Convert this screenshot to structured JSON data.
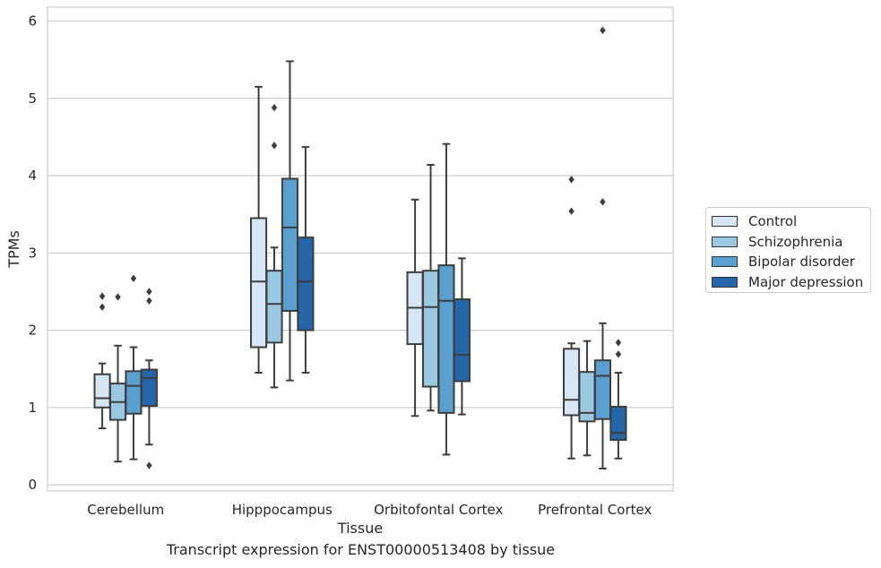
{
  "chart_data": {
    "type": "box",
    "caption": "Transcript expression for ENST00000513408 by tissue",
    "xlabel": "Tissue",
    "ylabel": "TPMs",
    "ylim": [
      -0.08,
      6.18
    ],
    "yticks": [
      0,
      1,
      2,
      3,
      4,
      5,
      6
    ],
    "grid": "horizontal",
    "legend_position": "right",
    "categories": [
      "Cerebellum",
      "Hipppocampus",
      "Orbitofontal Cortex",
      "Prefrontal Cortex"
    ],
    "series": [
      {
        "name": "Control",
        "color": "#d6e6f4",
        "boxes": [
          {
            "whisker_low": 0.73,
            "q1": 1.0,
            "median": 1.12,
            "q3": 1.43,
            "whisker_high": 1.57,
            "outliers": [
              2.3,
              2.44
            ]
          },
          {
            "whisker_low": 1.45,
            "q1": 1.78,
            "median": 2.63,
            "q3": 3.45,
            "whisker_high": 5.15,
            "outliers": []
          },
          {
            "whisker_low": 0.89,
            "q1": 1.82,
            "median": 2.29,
            "q3": 2.75,
            "whisker_high": 3.69,
            "outliers": []
          },
          {
            "whisker_low": 0.34,
            "q1": 0.9,
            "median": 1.1,
            "q3": 1.76,
            "whisker_high": 1.83,
            "outliers": [
              3.54,
              3.95
            ]
          }
        ]
      },
      {
        "name": "Schizophrenia",
        "color": "#9ac8e0",
        "boxes": [
          {
            "whisker_low": 0.3,
            "q1": 0.84,
            "median": 1.07,
            "q3": 1.31,
            "whisker_high": 1.8,
            "outliers": [
              2.43
            ]
          },
          {
            "whisker_low": 1.26,
            "q1": 1.84,
            "median": 2.34,
            "q3": 2.77,
            "whisker_high": 3.07,
            "outliers": [
              4.39,
              4.88
            ]
          },
          {
            "whisker_low": 0.96,
            "q1": 1.27,
            "median": 2.3,
            "q3": 2.77,
            "whisker_high": 4.14,
            "outliers": []
          },
          {
            "whisker_low": 0.38,
            "q1": 0.82,
            "median": 0.93,
            "q3": 1.46,
            "whisker_high": 1.86,
            "outliers": []
          }
        ]
      },
      {
        "name": "Bipolar disorder",
        "color": "#5a9fcd",
        "boxes": [
          {
            "whisker_low": 0.33,
            "q1": 0.92,
            "median": 1.28,
            "q3": 1.47,
            "whisker_high": 1.78,
            "outliers": [
              2.67
            ]
          },
          {
            "whisker_low": 1.35,
            "q1": 2.25,
            "median": 3.33,
            "q3": 3.96,
            "whisker_high": 5.48,
            "outliers": []
          },
          {
            "whisker_low": 0.39,
            "q1": 0.93,
            "median": 2.38,
            "q3": 2.84,
            "whisker_high": 4.41,
            "outliers": []
          },
          {
            "whisker_low": 0.21,
            "q1": 0.85,
            "median": 1.41,
            "q3": 1.61,
            "whisker_high": 2.09,
            "outliers": [
              3.66,
              5.88
            ]
          }
        ]
      },
      {
        "name": "Major depression",
        "color": "#2565a8",
        "boxes": [
          {
            "whisker_low": 0.52,
            "q1": 1.02,
            "median": 1.38,
            "q3": 1.49,
            "whisker_high": 1.61,
            "outliers": [
              0.25,
              2.38,
              2.5
            ]
          },
          {
            "whisker_low": 1.45,
            "q1": 2.0,
            "median": 2.63,
            "q3": 3.2,
            "whisker_high": 4.37,
            "outliers": []
          },
          {
            "whisker_low": 0.91,
            "q1": 1.34,
            "median": 1.68,
            "q3": 2.4,
            "whisker_high": 2.93,
            "outliers": []
          },
          {
            "whisker_low": 0.34,
            "q1": 0.58,
            "median": 0.67,
            "q3": 1.01,
            "whisker_high": 1.45,
            "outliers": [
              1.69,
              1.84
            ]
          }
        ]
      }
    ]
  }
}
